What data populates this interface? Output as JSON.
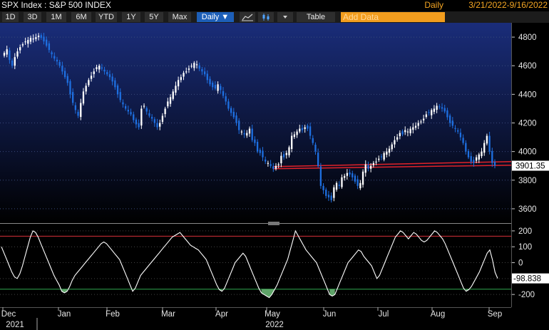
{
  "header": {
    "title": "SPX Index : S&P 500 INDEX",
    "frequency_label": "Daily",
    "date_range": "3/21/2022-9/16/2022"
  },
  "toolbar": {
    "periods": [
      "1D",
      "3D",
      "1M",
      "6M",
      "YTD",
      "1Y",
      "5Y",
      "Max"
    ],
    "interval": "Daily ▼",
    "table_label": "Table",
    "add_data_placeholder": "Add Data"
  },
  "colors": {
    "up_candle": "#ffffff",
    "down_candle": "#1e6fe0",
    "support_band": "#e0222a",
    "oscillator_line": "#ffffff",
    "overbought_line": "#d9303a",
    "oversold_line": "#2fa84f",
    "oversold_fill": "#6fbf7a"
  },
  "chart_data": [
    {
      "type": "candlestick",
      "series_name": "SPX Index",
      "ylim": [
        3500,
        4900
      ],
      "y_ticks": [
        3600,
        3800,
        4000,
        4200,
        4400,
        4600,
        4800
      ],
      "last_value_label": "3901.35",
      "x_tick_labels": [
        "Dec",
        "Jan",
        "Feb",
        "Mar",
        "Apr",
        "May",
        "Jun",
        "Jul",
        "Aug",
        "Sep"
      ],
      "x_year_labels": [
        "2021",
        "2022"
      ],
      "support_levels": [
        [
          3880,
          3905
        ],
        [
          3895,
          3930
        ]
      ],
      "closes": [
        4690,
        4715,
        4640,
        4600,
        4660,
        4700,
        4730,
        4750,
        4770,
        4780,
        4795,
        4790,
        4800,
        4810,
        4795,
        4770,
        4740,
        4710,
        4680,
        4650,
        4630,
        4600,
        4560,
        4520,
        4480,
        4400,
        4340,
        4290,
        4250,
        4340,
        4420,
        4460,
        4500,
        4530,
        4560,
        4590,
        4600,
        4580,
        4560,
        4540,
        4520,
        4490,
        4450,
        4400,
        4360,
        4330,
        4300,
        4280,
        4260,
        4220,
        4190,
        4170,
        4300,
        4320,
        4280,
        4250,
        4230,
        4200,
        4170,
        4200,
        4250,
        4300,
        4350,
        4380,
        4420,
        4460,
        4500,
        4520,
        4550,
        4560,
        4580,
        4600,
        4620,
        4610,
        4580,
        4560,
        4540,
        4500,
        4470,
        4450,
        4440,
        4470,
        4430,
        4390,
        4350,
        4300,
        4270,
        4240,
        4200,
        4150,
        4140,
        4120,
        4130,
        4160,
        4080,
        4060,
        4000,
        3990,
        3960,
        3930,
        3920,
        3900,
        3880,
        3900,
        3910,
        3970,
        3960,
        3990,
        4030,
        4110,
        4120,
        4140,
        4160,
        4150,
        4170,
        4160,
        4110,
        4060,
        4000,
        3900,
        3760,
        3730,
        3690,
        3680,
        3660,
        3750,
        3780,
        3760,
        3820,
        3830,
        3850,
        3840,
        3820,
        3790,
        3760,
        3780,
        3860,
        3910,
        3880,
        3900,
        3920,
        3930,
        3950,
        3960,
        3990,
        4000,
        4020,
        4050,
        4080,
        4100,
        4130,
        4120,
        4150,
        4140,
        4160,
        4170,
        4180,
        4200,
        4210,
        4230,
        4260,
        4270,
        4290,
        4300,
        4320,
        4310,
        4300,
        4280,
        4240,
        4200,
        4180,
        4160,
        4140,
        4100,
        4060,
        4000,
        3960,
        3930,
        3920,
        3960,
        3980,
        4000,
        4060,
        4110,
        4000,
        3920,
        3901
      ]
    },
    {
      "type": "line",
      "series_name": "oscillator",
      "ylim": [
        -280,
        240
      ],
      "y_ticks": [
        -200,
        -100,
        0,
        100,
        200
      ],
      "y_tick_labels": [
        "-200",
        "-100",
        "0",
        "100",
        "200"
      ],
      "upper_band": 166.67,
      "lower_band": -166.67,
      "last_value_label": "-98.838",
      "values": [
        100,
        60,
        20,
        -20,
        -60,
        -90,
        -100,
        -70,
        -20,
        40,
        100,
        160,
        200,
        190,
        160,
        120,
        80,
        40,
        0,
        -40,
        -80,
        -110,
        -140,
        -180,
        -190,
        -180,
        -150,
        -110,
        -80,
        -60,
        -40,
        -20,
        0,
        20,
        40,
        60,
        80,
        100,
        120,
        130,
        120,
        100,
        80,
        60,
        40,
        20,
        -20,
        -60,
        -100,
        -140,
        -180,
        -160,
        -120,
        -80,
        -60,
        -40,
        -20,
        0,
        20,
        40,
        60,
        80,
        100,
        120,
        140,
        160,
        170,
        180,
        190,
        170,
        150,
        130,
        110,
        100,
        90,
        80,
        60,
        40,
        20,
        -20,
        -60,
        -100,
        -140,
        -170,
        -180,
        -160,
        -120,
        -80,
        -40,
        0,
        20,
        40,
        60,
        40,
        0,
        -40,
        -80,
        -120,
        -160,
        -190,
        -200,
        -210,
        -220,
        -200,
        -170,
        -140,
        -100,
        -60,
        -20,
        20,
        80,
        140,
        200,
        170,
        140,
        110,
        80,
        60,
        40,
        20,
        0,
        -40,
        -80,
        -120,
        -160,
        -200,
        -210,
        -200,
        -160,
        -120,
        -80,
        -40,
        0,
        20,
        40,
        60,
        80,
        70,
        40,
        20,
        0,
        -20,
        -60,
        -100,
        -80,
        -40,
        0,
        40,
        80,
        120,
        160,
        180,
        200,
        190,
        170,
        150,
        170,
        190,
        180,
        160,
        140,
        130,
        140,
        160,
        180,
        200,
        190,
        170,
        150,
        120,
        80,
        40,
        0,
        -40,
        -80,
        -120,
        -160,
        -180,
        -170,
        -150,
        -120,
        -90,
        -60,
        -20,
        20,
        60,
        80,
        20,
        -60,
        -99
      ]
    }
  ]
}
